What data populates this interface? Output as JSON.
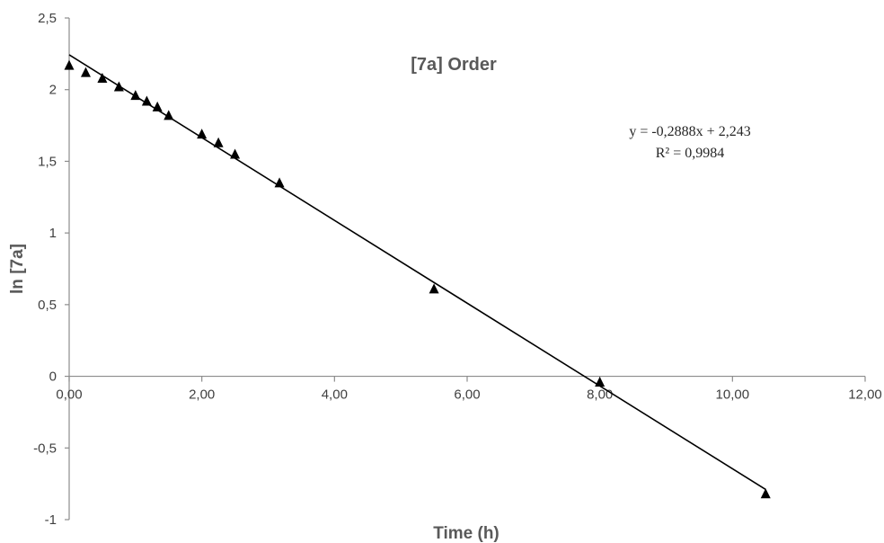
{
  "chart_data": {
    "type": "scatter",
    "title": "[7a] Order",
    "xlabel": "Time (h)",
    "ylabel": "ln [7a]",
    "xlim": [
      0,
      12
    ],
    "ylim": [
      -1,
      2.5
    ],
    "x_ticks": [
      "0,00",
      "2,00",
      "4,00",
      "6,00",
      "8,00",
      "10,00",
      "12,00"
    ],
    "y_ticks": [
      "-1",
      "-0,5",
      "0",
      "0,5",
      "1",
      "1,5",
      "2",
      "2,5"
    ],
    "grid": false,
    "marker": "triangle",
    "series": [
      {
        "x": [
          0,
          0.25,
          0.5,
          0.75,
          1.0,
          1.17,
          1.33,
          1.5,
          2.0,
          2.25,
          2.5,
          3.17,
          5.5,
          8.0,
          10.5
        ],
        "y": [
          2.17,
          2.12,
          2.08,
          2.02,
          1.96,
          1.92,
          1.88,
          1.82,
          1.69,
          1.63,
          1.55,
          1.35,
          0.61,
          -0.04,
          -0.82
        ]
      }
    ],
    "trendline": {
      "slope": -0.2888,
      "intercept": 2.243,
      "x_range": [
        0,
        10.5
      ],
      "equation_text": "y = -0,2888x  + 2,243",
      "r2_text": "R² = 0,9984"
    }
  }
}
